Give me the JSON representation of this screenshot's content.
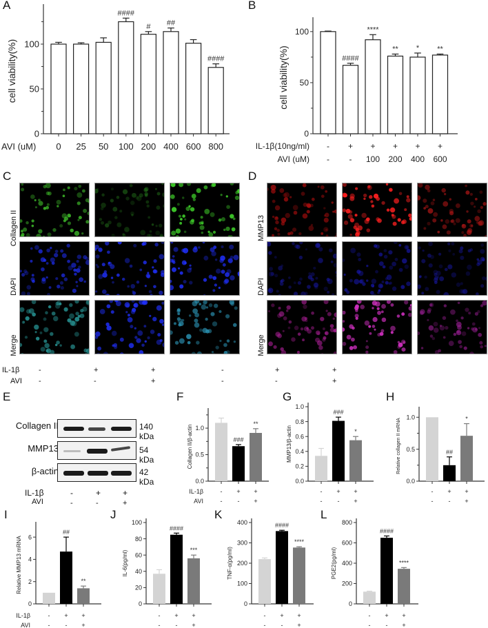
{
  "panels": {
    "A": "A",
    "B": "B",
    "C": "C",
    "D": "D",
    "E": "E",
    "F": "F",
    "G": "G",
    "H": "H",
    "I": "I",
    "J": "J",
    "K": "K",
    "L": "L"
  },
  "chart_data": [
    {
      "panel": "A",
      "type": "bar",
      "ylabel": "cell viability(%)",
      "xlabel": "AVI (uM)",
      "categories": [
        "0",
        "25",
        "50",
        "100",
        "200",
        "400",
        "600",
        "800"
      ],
      "values": [
        100,
        100,
        102,
        125,
        111,
        114,
        101,
        74
      ],
      "errors": [
        2,
        1.5,
        5,
        4,
        3,
        4,
        4,
        4
      ],
      "annotations": [
        "",
        "",
        "",
        "####",
        "#",
        "##",
        "",
        "####"
      ],
      "yticks": [
        0,
        50,
        100
      ],
      "ylim": [
        0,
        140
      ],
      "bar_color": "#ffffff"
    },
    {
      "panel": "B",
      "type": "bar",
      "ylabel": "cell viability(%)",
      "condition_rows": [
        {
          "label": "IL-1β(10ng/ml)",
          "values": [
            "-",
            "+",
            "+",
            "+",
            "+",
            "+"
          ]
        },
        {
          "label": "AVI (uM)",
          "values": [
            "-",
            "-",
            "100",
            "200",
            "400",
            "600"
          ]
        }
      ],
      "values": [
        100,
        67,
        92,
        76,
        75,
        77
      ],
      "errors": [
        0.5,
        2,
        5,
        2,
        4,
        1
      ],
      "annotations": [
        "",
        "####",
        "****",
        "**",
        "*",
        "**"
      ],
      "yticks": [
        0,
        50,
        100
      ],
      "ylim": [
        0,
        110
      ],
      "bar_color": "#ffffff"
    },
    {
      "panel": "F",
      "type": "bar",
      "ylabel": "Collagen II/β-actin",
      "values": [
        1.1,
        0.66,
        0.91
      ],
      "errors": [
        0.09,
        0.03,
        0.08
      ],
      "annotations": [
        "",
        "###",
        "**"
      ],
      "yticks": [
        "0.0",
        "0.5",
        "1.0"
      ],
      "ylim": [
        0,
        1.3
      ],
      "colors": [
        "#d4d4d4",
        "#000000",
        "#7a7a7a"
      ]
    },
    {
      "panel": "G",
      "type": "bar",
      "ylabel": "MMP13/β-actin",
      "values": [
        0.34,
        0.81,
        0.55
      ],
      "errors": [
        0.1,
        0.05,
        0.05
      ],
      "annotations": [
        "",
        "###",
        "*"
      ],
      "yticks": [
        "0.0",
        "0.2",
        "0.4",
        "0.6",
        "0.8",
        "1.0"
      ],
      "ylim": [
        0,
        1.0
      ],
      "colors": [
        "#d4d4d4",
        "#000000",
        "#7a7a7a"
      ]
    },
    {
      "panel": "H",
      "type": "bar",
      "ylabel": "Relative collagen II mRNA",
      "values": [
        1.0,
        0.25,
        0.71
      ],
      "errors": [
        0.0,
        0.13,
        0.19
      ],
      "annotations": [
        "",
        "##",
        "*"
      ],
      "yticks": [
        "0.0",
        "0.5",
        "1.0"
      ],
      "ylim": [
        0,
        1.1
      ],
      "colors": [
        "#d4d4d4",
        "#000000",
        "#7a7a7a"
      ]
    },
    {
      "panel": "I",
      "type": "bar",
      "ylabel": "Relative MMP13 mRNA",
      "values": [
        1.0,
        4.7,
        1.4
      ],
      "errors": [
        0.0,
        1.3,
        0.2
      ],
      "annotations": [
        "",
        "##",
        "**"
      ],
      "yticks": [
        "0",
        "2",
        "4",
        "6"
      ],
      "ylim": [
        0,
        7
      ],
      "colors": [
        "#d4d4d4",
        "#000000",
        "#7a7a7a"
      ]
    },
    {
      "panel": "J",
      "type": "bar",
      "ylabel": "IL-6(pg/ml)",
      "values": [
        37,
        85,
        56
      ],
      "errors": [
        5,
        2,
        4
      ],
      "annotations": [
        "",
        "####",
        "***"
      ],
      "yticks": [
        "0",
        "20",
        "40",
        "60",
        "80",
        "100"
      ],
      "ylim": [
        0,
        100
      ],
      "colors": [
        "#d4d4d4",
        "#000000",
        "#7a7a7a"
      ]
    },
    {
      "panel": "K",
      "type": "bar",
      "ylabel": "TNF-α(pg/ml)",
      "values": [
        220,
        358,
        277
      ],
      "errors": [
        6,
        4,
        4
      ],
      "annotations": [
        "",
        "####",
        "****"
      ],
      "yticks": [
        "0",
        "100",
        "200",
        "300",
        "400"
      ],
      "ylim": [
        0,
        400
      ],
      "colors": [
        "#d4d4d4",
        "#000000",
        "#7a7a7a"
      ]
    },
    {
      "panel": "L",
      "type": "bar",
      "ylabel": "PGE2(pg/ml)",
      "values": [
        120,
        650,
        345
      ],
      "errors": [
        5,
        18,
        12
      ],
      "annotations": [
        "",
        "####",
        "****"
      ],
      "yticks": [
        "0",
        "200",
        "400",
        "600",
        "800"
      ],
      "ylim": [
        0,
        800
      ],
      "colors": [
        "#d4d4d4",
        "#000000",
        "#7a7a7a"
      ]
    }
  ],
  "conditions": {
    "il1b_label": "IL-1β",
    "avi_label": "AVI",
    "il1b": [
      "-",
      "+",
      "+"
    ],
    "avi": [
      "-",
      "-",
      "+"
    ]
  },
  "microscopy": {
    "C": {
      "rows": [
        "Collagen II",
        "DAPI",
        "Merge"
      ]
    },
    "D": {
      "rows": [
        "MMP13",
        "DAPI",
        "Merge"
      ]
    }
  },
  "western_blot": {
    "rows": [
      {
        "protein": "Collagen II",
        "kda": "140 kDa"
      },
      {
        "protein": "MMP13",
        "kda": "54 kDa"
      },
      {
        "protein": "β-actin",
        "kda": "42 kDa"
      }
    ]
  }
}
